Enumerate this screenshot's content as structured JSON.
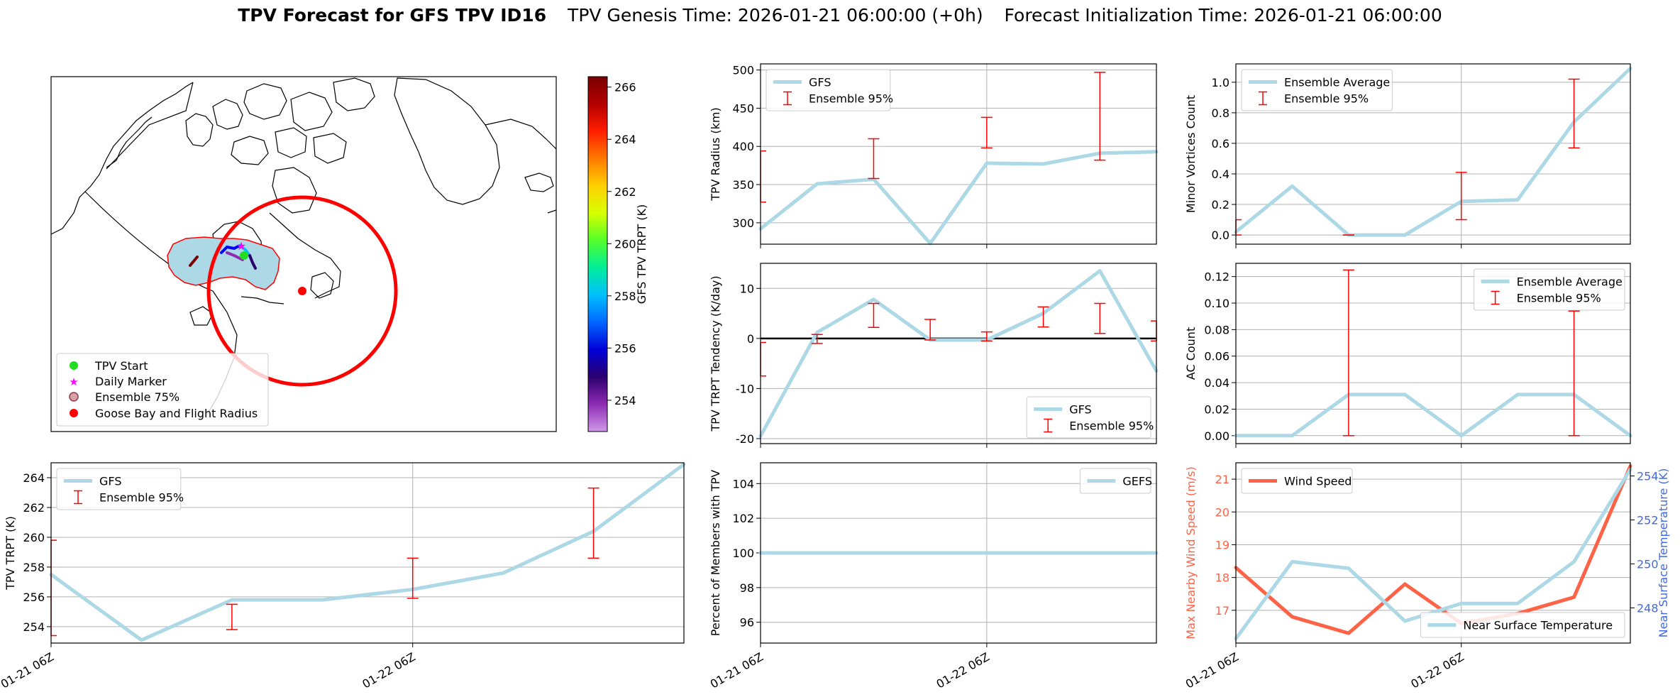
{
  "title": {
    "bold": "TPV Forecast for GFS TPV ID16",
    "genesis": "TPV Genesis Time: 2026-01-21 06:00:00 (+0h)",
    "init": "Forecast Initialization Time: 2026-01-21 06:00:00"
  },
  "map": {
    "colorbar": {
      "label": "GFS TPV TRPT (K)",
      "ticks": [
        254,
        256,
        258,
        260,
        262,
        264,
        266
      ],
      "range": [
        252.8,
        266.4
      ],
      "colors": [
        "#ce9ae6",
        "#8e2bb3",
        "#2b006e",
        "#0000d8",
        "#0066ff",
        "#00c0ff",
        "#00ee9a",
        "#52ff2a",
        "#d8ff00",
        "#ffd000",
        "#ff7a00",
        "#ff1e00",
        "#b40000",
        "#7a0000"
      ]
    },
    "legend": [
      {
        "label": "TPV Start",
        "marker": "green-dot",
        "color": "#22dd22"
      },
      {
        "label": "Daily Marker",
        "marker": "magenta-star",
        "color": "#ff00ff"
      },
      {
        "label": "Ensemble 75%",
        "marker": "shaded-circle",
        "color": "#add8e6"
      },
      {
        "label": "Goose Bay and Flight Radius",
        "marker": "red-dot",
        "color": "#ff0000"
      }
    ]
  },
  "chart_data": [
    {
      "id": "radius",
      "type": "line",
      "ylabel": "TPV Radius (km)",
      "xlabel": "",
      "x": [
        0,
        1,
        2,
        3,
        4,
        5,
        6,
        7
      ],
      "ylim": [
        272,
        508
      ],
      "yticks": [
        300,
        350,
        400,
        450,
        500
      ],
      "xticks": [],
      "xgrid": [
        0,
        4
      ],
      "series": [
        {
          "name": "GFS",
          "values": [
            292,
            351,
            357,
            273,
            378,
            377,
            391,
            393
          ],
          "color": "#add8e6"
        }
      ],
      "errorbars": {
        "name": "Ensemble 95%",
        "x": [
          0,
          2,
          4,
          6
        ],
        "low": [
          327,
          358,
          398,
          382
        ],
        "high": [
          394,
          410,
          438,
          497
        ]
      },
      "legend": "top-left",
      "zero_line": false
    },
    {
      "id": "minor",
      "type": "line",
      "ylabel": "Minor Vortices Count",
      "xlabel": "",
      "x": [
        0,
        1,
        2,
        3,
        4,
        5,
        6,
        7
      ],
      "ylim": [
        -0.06,
        1.12
      ],
      "yticks": [
        0.0,
        0.2,
        0.4,
        0.6,
        0.8,
        1.0
      ],
      "yfmt": 1,
      "xticks": [],
      "xgrid": [
        0,
        4
      ],
      "series": [
        {
          "name": "Ensemble Average",
          "values": [
            0.02,
            0.32,
            0.0,
            0.0,
            0.22,
            0.23,
            0.74,
            1.09
          ],
          "color": "#add8e6"
        }
      ],
      "errorbars": {
        "name": "Ensemble 95%",
        "x": [
          0,
          2,
          4,
          6
        ],
        "low": [
          0.0,
          0.0,
          0.1,
          0.57
        ],
        "high": [
          0.1,
          0.0,
          0.41,
          1.02
        ]
      },
      "legend": "top-left",
      "zero_line": false
    },
    {
      "id": "tendency",
      "type": "line",
      "ylabel": "TPV TRPT Tendency (K/day)",
      "xlabel": "",
      "x": [
        0,
        1,
        2,
        3,
        4,
        5,
        6,
        7
      ],
      "ylim": [
        -21,
        15
      ],
      "yticks": [
        -20,
        -10,
        0,
        10
      ],
      "xticks": [],
      "xgrid": [
        0,
        4
      ],
      "series": [
        {
          "name": "GFS",
          "values": [
            -19.5,
            1.2,
            7.8,
            -0.3,
            -0.3,
            5.0,
            13.5,
            -6.5
          ],
          "color": "#add8e6"
        }
      ],
      "errorbars": {
        "name": "Ensemble 95%",
        "x": [
          0,
          1,
          2,
          3,
          4,
          5,
          6,
          7
        ],
        "low": [
          -7.5,
          -1.0,
          2.2,
          -0.3,
          -0.5,
          2.3,
          1.0,
          -0.5
        ],
        "high": [
          -0.8,
          0.8,
          7.0,
          3.8,
          1.3,
          6.3,
          7.0,
          3.5
        ]
      },
      "legend": "bottom-right",
      "zero_line": true
    },
    {
      "id": "ac",
      "type": "line",
      "ylabel": "AC Count",
      "xlabel": "",
      "x": [
        0,
        1,
        2,
        3,
        4,
        5,
        6,
        7
      ],
      "ylim": [
        -0.006,
        0.13
      ],
      "yticks": [
        0.0,
        0.02,
        0.04,
        0.06,
        0.08,
        0.1,
        0.12
      ],
      "yfmt": 2,
      "xticks": [],
      "xgrid": [
        0,
        4
      ],
      "series": [
        {
          "name": "Ensemble Average",
          "values": [
            0.0,
            0.0,
            0.031,
            0.031,
            0.0,
            0.031,
            0.031,
            0.0
          ],
          "color": "#add8e6"
        }
      ],
      "errorbars": {
        "name": "Ensemble 95%",
        "x": [
          2,
          6
        ],
        "low": [
          0.0,
          0.0
        ],
        "high": [
          0.125,
          0.094
        ]
      },
      "legend": "top-right",
      "zero_line": false
    },
    {
      "id": "trpt",
      "type": "line",
      "ylabel": "TPV TRPT (K)",
      "xlabel": "",
      "x": [
        0,
        1,
        2,
        3,
        4,
        5,
        6,
        7
      ],
      "ylim": [
        252.9,
        265.0
      ],
      "yticks": [
        254,
        256,
        258,
        260,
        262,
        264
      ],
      "xticks": [
        {
          "x": 0,
          "label": "01-21 06Z"
        },
        {
          "x": 4,
          "label": "01-22 06Z"
        }
      ],
      "xgrid": [
        0,
        4
      ],
      "series": [
        {
          "name": "GFS",
          "values": [
            257.5,
            253.1,
            255.8,
            255.8,
            256.5,
            257.6,
            260.4,
            264.9
          ],
          "color": "#add8e6"
        }
      ],
      "errorbars": {
        "name": "Ensemble 95%",
        "x": [
          0,
          2,
          4,
          6
        ],
        "low": [
          253.4,
          253.8,
          255.9,
          258.6
        ],
        "high": [
          259.8,
          255.5,
          258.6,
          263.3
        ]
      },
      "legend": "top-left",
      "zero_line": false
    },
    {
      "id": "percent",
      "type": "line",
      "ylabel": "Percent of Members with TPV",
      "xlabel": "",
      "x": [
        0,
        1,
        2,
        3,
        4,
        5,
        6,
        7
      ],
      "ylim": [
        94.8,
        105.2
      ],
      "yticks": [
        96,
        98,
        100,
        102,
        104
      ],
      "xticks": [
        {
          "x": 0,
          "label": "01-21 06Z"
        },
        {
          "x": 4,
          "label": "01-22 06Z"
        }
      ],
      "xgrid": [
        0,
        4
      ],
      "series": [
        {
          "name": "GEFS",
          "values": [
            100,
            100,
            100,
            100,
            100,
            100,
            100,
            100
          ],
          "color": "#add8e6"
        }
      ],
      "legend": "top-right",
      "zero_line": false
    },
    {
      "id": "wind",
      "type": "line",
      "ylabel": "Max Nearby Wind Speed (m/s)",
      "ylabel_color": "#ff6347",
      "y2label": "Near Surface Temperature (K)",
      "y2label_color": "#4169e1",
      "xlabel": "",
      "x": [
        0,
        1,
        2,
        3,
        4,
        5,
        6,
        7
      ],
      "ylim": [
        16.0,
        21.5
      ],
      "yticks": [
        17,
        18,
        19,
        20,
        21
      ],
      "y2lim": [
        246.4,
        254.6
      ],
      "y2ticks": [
        248,
        250,
        252,
        254
      ],
      "xticks": [
        {
          "x": 0,
          "label": "01-21 06Z"
        },
        {
          "x": 4,
          "label": "01-22 06Z"
        }
      ],
      "xgrid": [
        0,
        4
      ],
      "series": [
        {
          "name": "Wind Speed",
          "values": [
            18.3,
            16.8,
            16.3,
            17.8,
            16.6,
            16.9,
            17.4,
            21.4
          ],
          "color": "#ff6347",
          "axis": "left"
        },
        {
          "name": "Near Surface Temperature",
          "values": [
            246.6,
            250.1,
            249.8,
            247.4,
            248.2,
            248.2,
            250.1,
            254.3
          ],
          "color": "#add8e6",
          "axis": "right"
        }
      ],
      "legend": "top-left",
      "legend2": "bottom-right",
      "zero_line": false
    }
  ]
}
